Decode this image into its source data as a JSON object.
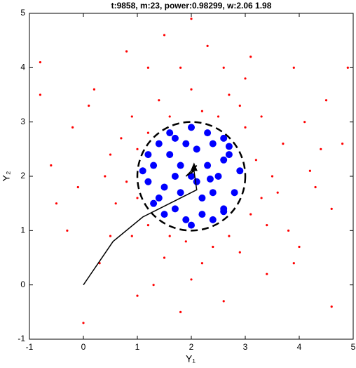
{
  "chart_data": {
    "type": "scatter",
    "title": "t:9858, m:23, power:0.98299, w:2.06      1.98",
    "x_label": "Y₁",
    "y_label": "Y₂",
    "xlim": [
      -1,
      5
    ],
    "ylim": [
      -1,
      5
    ],
    "xticks": [
      -1,
      0,
      1,
      2,
      3,
      4,
      5
    ],
    "yticks": [
      -1,
      0,
      1,
      2,
      3,
      4,
      5
    ],
    "series": [
      {
        "color": "#ff0000",
        "x": [
          -0.8,
          0.2,
          0.8,
          1.5,
          2.3,
          3.1,
          3.9,
          4.5,
          4.8,
          4.2,
          4.6,
          4.0,
          3.4,
          2.6,
          1.8,
          1.0,
          0.3,
          -0.3,
          -0.6,
          -0.2,
          0.5,
          0.9,
          1.4,
          2.0,
          2.7,
          3.3,
          3.7,
          3.6,
          3.4,
          2.9,
          2.2,
          1.5,
          0.9,
          0.6,
          0.4,
          1.2,
          1.6,
          2.5,
          3.0,
          3.2,
          3.3,
          2.7,
          1.9,
          1.2,
          0.8,
          1.0,
          2.2,
          2.9,
          3.5,
          3.1,
          2.4,
          1.6,
          1.0,
          0.7,
          1.8,
          3.0,
          4.1,
          4.3,
          3.8,
          2.0,
          0.5,
          -0.1,
          0.1,
          1.2,
          2.6,
          4.4,
          3.9,
          1.3,
          -0.5,
          4.9,
          2.0,
          0.0,
          4.6,
          -0.8
        ],
        "y": [
          4.1,
          3.6,
          4.3,
          4.6,
          4.4,
          4.2,
          4.0,
          3.4,
          2.6,
          2.1,
          1.4,
          0.7,
          0.2,
          -0.3,
          -0.5,
          -0.2,
          0.4,
          1.0,
          2.2,
          2.9,
          2.4,
          3.1,
          3.4,
          3.6,
          3.5,
          3.1,
          2.6,
          1.7,
          1.1,
          0.6,
          0.4,
          0.5,
          0.9,
          1.5,
          2.0,
          2.8,
          3.1,
          3.1,
          2.9,
          2.3,
          1.6,
          0.9,
          0.8,
          1.1,
          1.9,
          2.5,
          3.2,
          3.3,
          2.0,
          1.3,
          0.7,
          0.9,
          1.6,
          2.7,
          4.0,
          3.8,
          3.0,
          1.8,
          1.0,
          0.1,
          0.9,
          1.8,
          3.3,
          4.0,
          4.0,
          2.5,
          0.4,
          0.0,
          1.5,
          4.0,
          4.9,
          -0.7,
          -0.4,
          3.5
        ]
      },
      {
        "color": "#0000ff",
        "x": [
          2.0,
          1.3,
          1.4,
          1.7,
          2.3,
          2.7,
          2.8,
          2.4,
          1.9,
          1.5,
          1.2,
          1.6,
          2.1,
          2.5,
          2.2,
          1.8,
          2.0,
          1.1,
          2.9,
          2.0,
          1.4,
          2.6,
          2.6,
          1.5,
          1.8,
          2.3,
          2.4,
          1.7,
          2.2,
          1.9,
          2.6,
          1.3,
          2.6,
          1.6,
          2.4,
          1.2,
          2.7,
          2.1,
          1.7,
          2.35
        ],
        "y": [
          2.0,
          2.2,
          1.6,
          2.7,
          2.8,
          2.4,
          1.7,
          1.2,
          1.2,
          1.3,
          1.9,
          2.4,
          2.5,
          2.0,
          1.6,
          1.7,
          2.9,
          2.1,
          2.1,
          1.1,
          2.6,
          2.7,
          1.4,
          1.8,
          2.2,
          2.2,
          1.7,
          1.4,
          1.3,
          2.6,
          2.3,
          1.5,
          1.35,
          2.8,
          2.6,
          2.4,
          2.55,
          1.9,
          2.0,
          1.95
        ]
      }
    ],
    "circle": {
      "center": [
        2,
        2
      ],
      "radius": 1,
      "color": "#000000",
      "dashed": true
    },
    "trajectory": {
      "color": "#000000",
      "x": [
        0,
        0.55,
        1.1,
        2.1,
        2.05,
        1.9,
        2.1,
        2.0,
        2.05
      ],
      "y": [
        0,
        0.8,
        1.25,
        1.75,
        2.1,
        2.0,
        2.2,
        2.05,
        2.15
      ]
    }
  }
}
